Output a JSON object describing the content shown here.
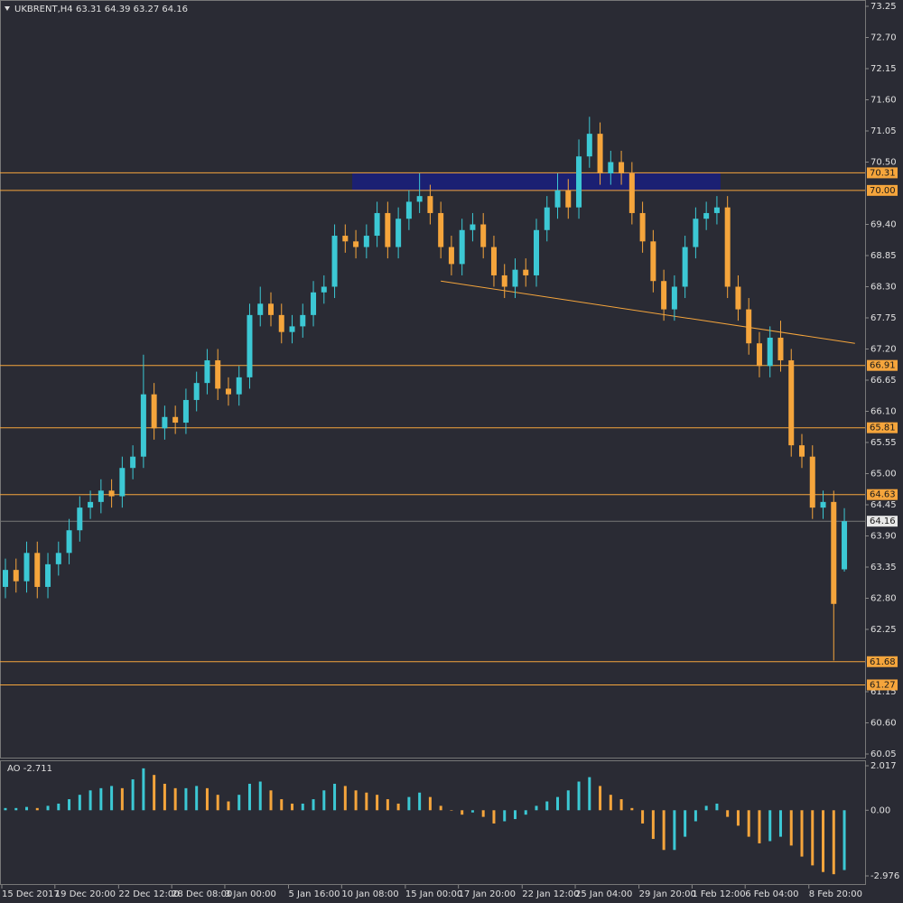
{
  "chart_data": [
    {
      "type": "candlestick",
      "title": "UKBRENT,H4",
      "ohlc_text": "63.31 64.39 63.27 64.16",
      "open": [
        63.0,
        63.3,
        63.1,
        63.6,
        63.0,
        63.4,
        63.6,
        64.0,
        64.4,
        64.5,
        64.7,
        64.6,
        65.1,
        65.3,
        66.4,
        65.8,
        66.0,
        65.9,
        66.3,
        66.6,
        67.0,
        66.5,
        66.4,
        66.7,
        67.8,
        68.0,
        67.8,
        67.5,
        67.6,
        67.8,
        68.2,
        68.3,
        69.2,
        69.1,
        69.0,
        69.2,
        69.6,
        69.0,
        69.5,
        69.8,
        69.9,
        69.6,
        69.0,
        68.7,
        69.3,
        69.4,
        69.0,
        68.5,
        68.3,
        68.6,
        68.5,
        69.3,
        69.7,
        70.0,
        69.7,
        70.6,
        71.0,
        70.3,
        70.5,
        70.3,
        69.6,
        69.1,
        68.4,
        67.9,
        68.3,
        69.0,
        69.5,
        69.6,
        69.7,
        68.3,
        67.9,
        67.3,
        66.9,
        67.4,
        67.0,
        65.5,
        65.3,
        64.4,
        64.5,
        63.31
      ],
      "high": [
        63.5,
        63.5,
        63.8,
        63.8,
        63.6,
        63.8,
        64.2,
        64.6,
        64.7,
        64.9,
        64.9,
        65.3,
        65.5,
        67.1,
        66.6,
        66.2,
        66.2,
        66.5,
        66.8,
        67.2,
        67.2,
        66.7,
        66.9,
        68.0,
        68.3,
        68.2,
        68.0,
        67.8,
        68.0,
        68.4,
        68.5,
        69.4,
        69.4,
        69.3,
        69.4,
        69.8,
        69.8,
        69.7,
        70.0,
        70.3,
        70.1,
        69.8,
        69.2,
        69.5,
        69.6,
        69.6,
        69.2,
        68.7,
        68.8,
        68.8,
        69.5,
        69.9,
        70.3,
        70.2,
        70.9,
        71.3,
        71.2,
        70.7,
        70.7,
        70.5,
        69.8,
        69.3,
        68.6,
        68.5,
        69.2,
        69.7,
        69.8,
        69.9,
        69.9,
        68.5,
        68.1,
        67.5,
        67.6,
        67.7,
        67.2,
        65.7,
        65.5,
        64.7,
        64.7,
        64.39
      ],
      "low": [
        62.8,
        62.9,
        62.9,
        62.8,
        62.8,
        63.2,
        63.4,
        63.8,
        64.2,
        64.3,
        64.4,
        64.4,
        64.9,
        65.1,
        65.6,
        65.6,
        65.7,
        65.7,
        66.1,
        66.4,
        66.3,
        66.2,
        66.2,
        66.5,
        67.6,
        67.6,
        67.3,
        67.3,
        67.4,
        67.6,
        68.0,
        68.1,
        68.9,
        68.8,
        68.8,
        69.0,
        68.8,
        68.8,
        69.3,
        69.6,
        69.4,
        68.8,
        68.5,
        68.5,
        69.1,
        68.8,
        68.3,
        68.1,
        68.1,
        68.3,
        68.3,
        69.1,
        69.5,
        69.5,
        69.5,
        70.4,
        70.1,
        70.1,
        70.1,
        69.4,
        68.9,
        68.2,
        67.7,
        67.7,
        68.1,
        68.8,
        69.3,
        69.4,
        68.1,
        67.7,
        67.1,
        66.7,
        66.7,
        66.8,
        65.3,
        65.1,
        64.2,
        64.2,
        61.7,
        63.27
      ],
      "close": [
        63.3,
        63.1,
        63.6,
        63.0,
        63.4,
        63.6,
        64.0,
        64.4,
        64.5,
        64.7,
        64.6,
        65.1,
        65.3,
        66.4,
        65.8,
        66.0,
        65.9,
        66.3,
        66.6,
        67.0,
        66.5,
        66.4,
        66.7,
        67.8,
        68.0,
        67.8,
        67.5,
        67.6,
        67.8,
        68.2,
        68.3,
        69.2,
        69.1,
        69.0,
        69.2,
        69.6,
        69.0,
        69.5,
        69.8,
        69.9,
        69.6,
        69.0,
        68.7,
        69.3,
        69.4,
        69.0,
        68.5,
        68.3,
        68.6,
        68.5,
        69.3,
        69.7,
        70.0,
        69.7,
        70.6,
        71.0,
        70.3,
        70.5,
        70.3,
        69.6,
        69.1,
        68.4,
        67.9,
        68.3,
        69.0,
        69.5,
        69.6,
        69.7,
        68.3,
        67.9,
        67.3,
        66.9,
        67.4,
        67.0,
        65.5,
        65.3,
        64.4,
        64.5,
        62.7,
        64.16
      ],
      "up_color": "#3cc8d4",
      "down_color": "#f5a53c",
      "ylim": [
        60.05,
        73.25
      ],
      "yticks": [
        {
          "value": 73.25,
          "label": "73.25"
        },
        {
          "value": 72.7,
          "label": "72.70"
        },
        {
          "value": 72.15,
          "label": "72.15"
        },
        {
          "value": 71.6,
          "label": "71.60"
        },
        {
          "value": 71.05,
          "label": "71.05"
        },
        {
          "value": 70.5,
          "label": "70.50"
        },
        {
          "value": 69.4,
          "label": "69.40"
        },
        {
          "value": 68.85,
          "label": "68.85"
        },
        {
          "value": 68.3,
          "label": "68.30"
        },
        {
          "value": 67.75,
          "label": "67.75"
        },
        {
          "value": 67.2,
          "label": "67.20"
        },
        {
          "value": 66.65,
          "label": "66.65"
        },
        {
          "value": 66.1,
          "label": "66.10"
        },
        {
          "value": 65.55,
          "label": "65.55"
        },
        {
          "value": 65.0,
          "label": "65.00"
        },
        {
          "value": 64.45,
          "label": "64.45"
        },
        {
          "value": 63.9,
          "label": "63.90"
        },
        {
          "value": 63.35,
          "label": "63.35"
        },
        {
          "value": 62.8,
          "label": "62.80"
        },
        {
          "value": 62.25,
          "label": "62.25"
        },
        {
          "value": 61.15,
          "label": "61.15"
        },
        {
          "value": 60.6,
          "label": "60.60"
        },
        {
          "value": 60.05,
          "label": "60.05"
        }
      ],
      "xticks": [
        {
          "value": 0,
          "label": "15 Dec 2017"
        },
        {
          "value": 5,
          "label": "19 Dec 20:00"
        },
        {
          "value": 11,
          "label": "22 Dec 12:00"
        },
        {
          "value": 16,
          "label": "28 Dec 08:00"
        },
        {
          "value": 21,
          "label": "3 Jan 00:00"
        },
        {
          "value": 27,
          "label": "5 Jan 16:00"
        },
        {
          "value": 32,
          "label": "10 Jan 08:00"
        },
        {
          "value": 38,
          "label": "15 Jan 00:00"
        },
        {
          "value": 43,
          "label": "17 Jan 20:00"
        },
        {
          "value": 49,
          "label": "22 Jan 12:00"
        },
        {
          "value": 54,
          "label": "25 Jan 04:00"
        },
        {
          "value": 60,
          "label": "29 Jan 20:00"
        },
        {
          "value": 65,
          "label": "1 Feb 12:00"
        },
        {
          "value": 70,
          "label": "6 Feb 04:00"
        },
        {
          "value": 76,
          "label": "8 Feb 20:00"
        }
      ],
      "levels": [
        {
          "value": 70.31,
          "label": "70.31"
        },
        {
          "value": 70.0,
          "label": "70.00"
        },
        {
          "value": 66.91,
          "label": "66.91"
        },
        {
          "value": 65.81,
          "label": "65.81"
        },
        {
          "value": 64.63,
          "label": "64.63"
        },
        {
          "value": 61.68,
          "label": "61.68"
        },
        {
          "value": 61.27,
          "label": "61.27"
        }
      ],
      "level_color": "#f5a53c",
      "current": {
        "value": 64.16,
        "label": "64.16"
      },
      "zone": {
        "low": 70.0,
        "high": 70.31,
        "start": 33,
        "end": 67,
        "color": "#1a1f7a"
      },
      "trendline": {
        "x": [
          41,
          80
        ],
        "y": [
          68.4,
          67.3
        ],
        "color": "#f5a53c"
      }
    },
    {
      "type": "histogram",
      "title": "AO -2.711",
      "values": [
        0.1,
        0.1,
        0.15,
        0.1,
        0.2,
        0.3,
        0.5,
        0.7,
        0.9,
        1.0,
        1.1,
        1.0,
        1.4,
        1.9,
        1.6,
        1.2,
        1.0,
        1.0,
        1.1,
        1.0,
        0.7,
        0.4,
        0.7,
        1.2,
        1.3,
        0.9,
        0.5,
        0.3,
        0.3,
        0.5,
        0.9,
        1.2,
        1.1,
        0.9,
        0.8,
        0.7,
        0.5,
        0.3,
        0.6,
        0.8,
        0.6,
        0.2,
        0.0,
        -0.2,
        -0.1,
        -0.3,
        -0.6,
        -0.5,
        -0.4,
        -0.2,
        0.2,
        0.4,
        0.6,
        0.9,
        1.3,
        1.5,
        1.1,
        0.7,
        0.5,
        0.1,
        -0.6,
        -1.3,
        -1.8,
        -1.8,
        -1.2,
        -0.5,
        0.2,
        0.3,
        -0.3,
        -0.7,
        -1.2,
        -1.5,
        -1.4,
        -1.2,
        -1.6,
        -2.1,
        -2.5,
        -2.8,
        -2.9,
        -2.711
      ],
      "up_color": "#3cc8d4",
      "down_color": "#f5a53c",
      "ylim": [
        -2.976,
        2.017
      ],
      "yticks": [
        2.017,
        {
          "value": 0,
          "label": "0.00"
        },
        -2.976
      ]
    }
  ]
}
